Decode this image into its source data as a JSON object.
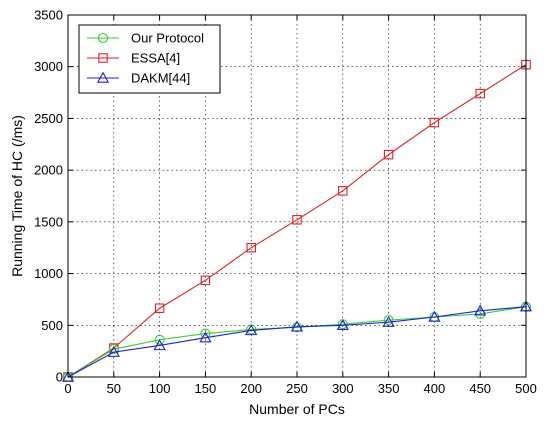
{
  "chart_data": {
    "type": "line",
    "xlabel": "Number of PCs",
    "ylabel": "Running Time of HC (/ms)",
    "xlim": [
      0,
      500
    ],
    "ylim": [
      0,
      3500
    ],
    "xticks": [
      0,
      50,
      100,
      150,
      200,
      250,
      300,
      350,
      400,
      450,
      500
    ],
    "yticks": [
      0,
      500,
      1000,
      1500,
      2000,
      2500,
      3000,
      3500
    ],
    "grid": true,
    "legend_position": "top-left",
    "x": [
      0,
      50,
      100,
      150,
      200,
      250,
      300,
      350,
      400,
      450,
      500
    ],
    "series": [
      {
        "name": "Our Protocol",
        "marker": "circle",
        "color": "#33cc33",
        "values": [
          0,
          270,
          360,
          420,
          460,
          480,
          510,
          550,
          580,
          610,
          680
        ]
      },
      {
        "name": "ESSA[4]",
        "marker": "square",
        "color": "#dd2222",
        "values": [
          0,
          280,
          665,
          935,
          1250,
          1520,
          1800,
          2150,
          2460,
          2740,
          3020
        ]
      },
      {
        "name": "DAKM[44]",
        "marker": "triangle",
        "color": "#2222cc",
        "values": [
          0,
          240,
          305,
          380,
          450,
          485,
          500,
          530,
          580,
          640,
          680
        ]
      }
    ]
  }
}
